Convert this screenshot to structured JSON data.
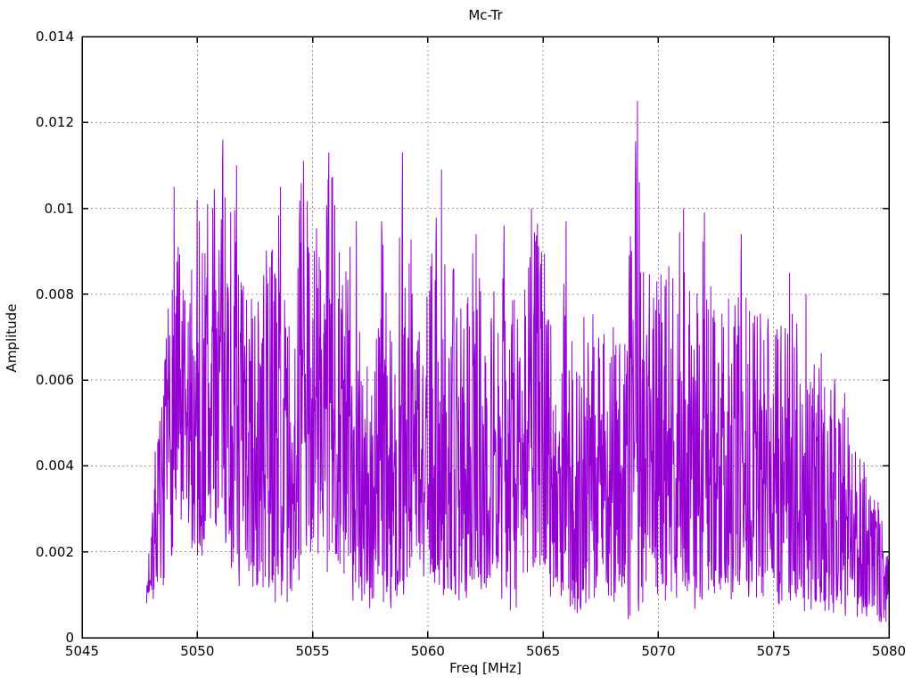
{
  "chart_data": {
    "type": "line",
    "title": "Mc-Tr",
    "xlabel": "Freq [MHz]",
    "ylabel": "Amplitude",
    "xlim": [
      5045,
      5080
    ],
    "ylim": [
      0,
      0.014
    ],
    "x_ticks": [
      5045,
      5050,
      5055,
      5060,
      5065,
      5070,
      5075,
      5080
    ],
    "x_tick_labels": [
      "5045",
      "5050",
      "5055",
      "5060",
      "5065",
      "5070",
      "5075",
      "5080"
    ],
    "y_ticks": [
      0,
      0.002,
      0.004,
      0.006,
      0.008,
      0.01,
      0.012,
      0.014
    ],
    "y_tick_labels": [
      "0",
      "0.002",
      "0.004",
      "0.006",
      "0.008",
      "0.01",
      "0.012",
      "0.014"
    ],
    "grid": true,
    "grid_style": "dotted",
    "legend_position": "none",
    "line_color": "#9400d3",
    "grid_color": "#999999",
    "border_color": "#000000",
    "background_color": "#ffffff",
    "signal_range_mhz": [
      5047.8,
      5080.0
    ],
    "points_per_mhz": 62,
    "noise_seed": 7,
    "envelope": [
      [
        5047.8,
        0.001,
        0.0007
      ],
      [
        5048.0,
        0.0042,
        0.0008
      ],
      [
        5048.5,
        0.0058,
        0.0012
      ],
      [
        5049.0,
        0.0105,
        0.0015
      ],
      [
        5049.5,
        0.0081,
        0.002
      ],
      [
        5050.0,
        0.0102,
        0.0013
      ],
      [
        5050.5,
        0.0101,
        0.0018
      ],
      [
        5051.0,
        0.0116,
        0.0022
      ],
      [
        5051.5,
        0.011,
        0.0015
      ],
      [
        5052.0,
        0.0089,
        0.001
      ],
      [
        5052.5,
        0.0083,
        0.0006
      ],
      [
        5053.0,
        0.0094,
        0.0005
      ],
      [
        5053.5,
        0.0105,
        0.0009
      ],
      [
        5054.0,
        0.008,
        0.0004
      ],
      [
        5054.5,
        0.0111,
        0.0012
      ],
      [
        5055.0,
        0.0106,
        0.0015
      ],
      [
        5055.5,
        0.0113,
        0.001
      ],
      [
        5056.0,
        0.0114,
        0.0012
      ],
      [
        5056.5,
        0.0096,
        0.001
      ],
      [
        5057.0,
        0.0097,
        0.0006
      ],
      [
        5057.5,
        0.0062,
        0.0004
      ],
      [
        5058.0,
        0.0098,
        0.0008
      ],
      [
        5058.5,
        0.0081,
        0.0005
      ],
      [
        5059.0,
        0.0113,
        0.0007
      ],
      [
        5059.5,
        0.0087,
        0.0013
      ],
      [
        5060.0,
        0.0084,
        0.001
      ],
      [
        5060.5,
        0.011,
        0.0009
      ],
      [
        5061.0,
        0.0091,
        0.0005
      ],
      [
        5061.5,
        0.0086,
        0.001
      ],
      [
        5062.0,
        0.0094,
        0.0008
      ],
      [
        5062.5,
        0.0082,
        0.0007
      ],
      [
        5063.0,
        0.0096,
        0.0009
      ],
      [
        5063.5,
        0.0086,
        0.0005
      ],
      [
        5064.0,
        0.0081,
        0.0008
      ],
      [
        5064.5,
        0.01,
        0.001
      ],
      [
        5065.0,
        0.0101,
        0.0012
      ],
      [
        5065.5,
        0.0076,
        0.0008
      ],
      [
        5066.0,
        0.0097,
        0.0005
      ],
      [
        5066.5,
        0.0066,
        0.0004
      ],
      [
        5067.0,
        0.0088,
        0.0008
      ],
      [
        5067.5,
        0.0086,
        0.001
      ],
      [
        5068.0,
        0.008,
        0.0006
      ],
      [
        5068.5,
        0.0075,
        0.0005
      ],
      [
        5069.0,
        0.0125,
        0.0003
      ],
      [
        5069.5,
        0.0092,
        0.0008
      ],
      [
        5070.0,
        0.0093,
        0.0004
      ],
      [
        5070.5,
        0.0092,
        0.0008
      ],
      [
        5071.0,
        0.01,
        0.001
      ],
      [
        5071.5,
        0.0079,
        0.0006
      ],
      [
        5072.0,
        0.0099,
        0.0008
      ],
      [
        5072.5,
        0.0077,
        0.0005
      ],
      [
        5073.0,
        0.0085,
        0.0008
      ],
      [
        5073.5,
        0.0094,
        0.001
      ],
      [
        5074.0,
        0.0078,
        0.0006
      ],
      [
        5074.5,
        0.008,
        0.0008
      ],
      [
        5075.0,
        0.0075,
        0.0005
      ],
      [
        5075.5,
        0.0085,
        0.0007
      ],
      [
        5076.0,
        0.0079,
        0.0008
      ],
      [
        5076.5,
        0.0064,
        0.0005
      ],
      [
        5077.0,
        0.0072,
        0.0004
      ],
      [
        5077.5,
        0.0063,
        0.0006
      ],
      [
        5078.0,
        0.007,
        0.0003
      ],
      [
        5078.5,
        0.005,
        0.0005
      ],
      [
        5079.0,
        0.0045,
        0.0004
      ],
      [
        5079.5,
        0.0035,
        0.0003
      ],
      [
        5080.0,
        0.002,
        0.0002
      ]
    ],
    "peaks": [
      [
        5049.0,
        0.0105
      ],
      [
        5050.0,
        0.0102
      ],
      [
        5050.45,
        0.0101
      ],
      [
        5051.1,
        0.0116
      ],
      [
        5051.7,
        0.011
      ],
      [
        5053.6,
        0.0105
      ],
      [
        5054.6,
        0.0111
      ],
      [
        5055.7,
        0.0113
      ],
      [
        5056.9,
        0.0097
      ],
      [
        5058.0,
        0.0097
      ],
      [
        5058.9,
        0.0113
      ],
      [
        5060.6,
        0.0109
      ],
      [
        5062.1,
        0.0094
      ],
      [
        5063.3,
        0.0096
      ],
      [
        5064.5,
        0.01
      ],
      [
        5066.0,
        0.0097
      ],
      [
        5069.1,
        0.0125
      ],
      [
        5071.1,
        0.01
      ],
      [
        5072.0,
        0.0099
      ],
      [
        5073.6,
        0.0094
      ],
      [
        5075.7,
        0.0085
      ],
      [
        5076.4,
        0.008
      ]
    ]
  }
}
